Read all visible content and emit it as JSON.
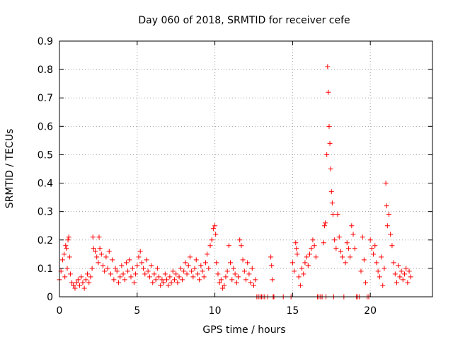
{
  "chart_data": {
    "type": "scatter",
    "title": "Day 060 of 2018, SRMTID for receiver cefe",
    "xlabel": "GPS time / hours",
    "ylabel": "SRMTID / TECUs",
    "xlim": [
      0,
      24
    ],
    "ylim": [
      0,
      0.9
    ],
    "xticks": [
      0,
      5,
      10,
      15,
      20
    ],
    "yticks": [
      0,
      0.1,
      0.2,
      0.3,
      0.4,
      0.5,
      0.6,
      0.7,
      0.8,
      0.9
    ],
    "xtick_labels": [
      "0",
      "5",
      "10",
      "15",
      "20"
    ],
    "ytick_labels": [
      "0",
      "0.1",
      "0.2",
      "0.3",
      "0.4",
      "0.5",
      "0.6",
      "0.7",
      "0.8",
      "0.9"
    ],
    "grid": true,
    "marker": "+",
    "series": [
      {
        "name": "SRMTID",
        "color": "#ff0000",
        "points": [
          [
            0.0,
            0.06
          ],
          [
            0.1,
            0.09
          ],
          [
            0.2,
            0.13
          ],
          [
            0.3,
            0.15
          ],
          [
            0.35,
            0.07
          ],
          [
            0.4,
            0.18
          ],
          [
            0.45,
            0.17
          ],
          [
            0.5,
            0.1
          ],
          [
            0.55,
            0.2
          ],
          [
            0.6,
            0.21
          ],
          [
            0.65,
            0.14
          ],
          [
            0.7,
            0.08
          ],
          [
            0.8,
            0.05
          ],
          [
            0.9,
            0.04
          ],
          [
            1.0,
            0.03
          ],
          [
            1.1,
            0.05
          ],
          [
            1.2,
            0.06
          ],
          [
            1.3,
            0.04
          ],
          [
            1.4,
            0.07
          ],
          [
            1.5,
            0.05
          ],
          [
            1.6,
            0.03
          ],
          [
            1.7,
            0.06
          ],
          [
            1.8,
            0.08
          ],
          [
            1.9,
            0.05
          ],
          [
            2.0,
            0.07
          ],
          [
            2.1,
            0.1
          ],
          [
            2.15,
            0.21
          ],
          [
            2.2,
            0.17
          ],
          [
            2.3,
            0.16
          ],
          [
            2.4,
            0.14
          ],
          [
            2.5,
            0.12
          ],
          [
            2.55,
            0.21
          ],
          [
            2.6,
            0.17
          ],
          [
            2.7,
            0.15
          ],
          [
            2.8,
            0.11
          ],
          [
            2.9,
            0.09
          ],
          [
            3.0,
            0.14
          ],
          [
            3.1,
            0.1
          ],
          [
            3.2,
            0.16
          ],
          [
            3.3,
            0.08
          ],
          [
            3.4,
            0.13
          ],
          [
            3.5,
            0.06
          ],
          [
            3.6,
            0.1
          ],
          [
            3.7,
            0.09
          ],
          [
            3.8,
            0.05
          ],
          [
            3.9,
            0.07
          ],
          [
            4.0,
            0.11
          ],
          [
            4.1,
            0.08
          ],
          [
            4.2,
            0.06
          ],
          [
            4.3,
            0.12
          ],
          [
            4.4,
            0.09
          ],
          [
            4.5,
            0.13
          ],
          [
            4.6,
            0.07
          ],
          [
            4.7,
            0.1
          ],
          [
            4.8,
            0.05
          ],
          [
            4.9,
            0.08
          ],
          [
            5.0,
            0.11
          ],
          [
            5.1,
            0.14
          ],
          [
            5.2,
            0.16
          ],
          [
            5.3,
            0.12
          ],
          [
            5.4,
            0.1
          ],
          [
            5.5,
            0.08
          ],
          [
            5.6,
            0.13
          ],
          [
            5.7,
            0.09
          ],
          [
            5.8,
            0.07
          ],
          [
            5.9,
            0.11
          ],
          [
            6.0,
            0.05
          ],
          [
            6.1,
            0.08
          ],
          [
            6.2,
            0.06
          ],
          [
            6.3,
            0.1
          ],
          [
            6.4,
            0.07
          ],
          [
            6.5,
            0.04
          ],
          [
            6.6,
            0.06
          ],
          [
            6.7,
            0.05
          ],
          [
            6.8,
            0.08
          ],
          [
            6.9,
            0.06
          ],
          [
            7.0,
            0.04
          ],
          [
            7.1,
            0.07
          ],
          [
            7.2,
            0.05
          ],
          [
            7.3,
            0.09
          ],
          [
            7.4,
            0.06
          ],
          [
            7.5,
            0.08
          ],
          [
            7.6,
            0.05
          ],
          [
            7.7,
            0.07
          ],
          [
            7.8,
            0.1
          ],
          [
            7.9,
            0.06
          ],
          [
            8.0,
            0.09
          ],
          [
            8.1,
            0.12
          ],
          [
            8.2,
            0.08
          ],
          [
            8.3,
            0.11
          ],
          [
            8.4,
            0.14
          ],
          [
            8.5,
            0.09
          ],
          [
            8.6,
            0.07
          ],
          [
            8.7,
            0.1
          ],
          [
            8.8,
            0.13
          ],
          [
            8.9,
            0.08
          ],
          [
            9.0,
            0.06
          ],
          [
            9.1,
            0.11
          ],
          [
            9.2,
            0.09
          ],
          [
            9.3,
            0.07
          ],
          [
            9.4,
            0.12
          ],
          [
            9.5,
            0.15
          ],
          [
            9.6,
            0.1
          ],
          [
            9.7,
            0.18
          ],
          [
            9.8,
            0.2
          ],
          [
            9.9,
            0.24
          ],
          [
            10.0,
            0.25
          ],
          [
            10.05,
            0.22
          ],
          [
            10.1,
            0.12
          ],
          [
            10.2,
            0.08
          ],
          [
            10.3,
            0.05
          ],
          [
            10.4,
            0.06
          ],
          [
            10.5,
            0.03
          ],
          [
            10.6,
            0.04
          ],
          [
            10.7,
            0.07
          ],
          [
            10.8,
            0.09
          ],
          [
            10.9,
            0.18
          ],
          [
            11.0,
            0.12
          ],
          [
            11.1,
            0.06
          ],
          [
            11.2,
            0.1
          ],
          [
            11.3,
            0.08
          ],
          [
            11.4,
            0.05
          ],
          [
            11.5,
            0.07
          ],
          [
            11.6,
            0.2
          ],
          [
            11.7,
            0.18
          ],
          [
            11.8,
            0.13
          ],
          [
            11.9,
            0.09
          ],
          [
            12.0,
            0.06
          ],
          [
            12.1,
            0.12
          ],
          [
            12.2,
            0.08
          ],
          [
            12.3,
            0.05
          ],
          [
            12.4,
            0.1
          ],
          [
            12.5,
            0.04
          ],
          [
            12.6,
            0.06
          ],
          [
            12.7,
            0.0
          ],
          [
            12.8,
            0.0
          ],
          [
            12.9,
            0.0
          ],
          [
            13.0,
            0.0
          ],
          [
            13.1,
            0.0
          ],
          [
            13.2,
            0.0
          ],
          [
            13.4,
            0.0
          ],
          [
            13.6,
            0.14
          ],
          [
            13.65,
            0.11
          ],
          [
            13.7,
            0.06
          ],
          [
            13.75,
            0.0
          ],
          [
            13.8,
            0.0
          ],
          [
            14.4,
            0.0
          ],
          [
            14.9,
            0.0
          ],
          [
            15.0,
            0.12
          ],
          [
            15.1,
            0.09
          ],
          [
            15.2,
            0.19
          ],
          [
            15.25,
            0.17
          ],
          [
            15.3,
            0.15
          ],
          [
            15.4,
            0.07
          ],
          [
            15.5,
            0.04
          ],
          [
            15.6,
            0.1
          ],
          [
            15.7,
            0.08
          ],
          [
            15.8,
            0.12
          ],
          [
            15.9,
            0.14
          ],
          [
            16.0,
            0.11
          ],
          [
            16.1,
            0.15
          ],
          [
            16.2,
            0.17
          ],
          [
            16.3,
            0.2
          ],
          [
            16.4,
            0.18
          ],
          [
            16.5,
            0.14
          ],
          [
            16.6,
            0.0
          ],
          [
            16.7,
            0.0
          ],
          [
            16.8,
            0.0
          ],
          [
            16.9,
            0.0
          ],
          [
            17.0,
            0.19
          ],
          [
            17.05,
            0.25
          ],
          [
            17.1,
            0.26
          ],
          [
            17.15,
            0.0
          ],
          [
            17.2,
            0.5
          ],
          [
            17.25,
            0.81
          ],
          [
            17.3,
            0.72
          ],
          [
            17.35,
            0.6
          ],
          [
            17.4,
            0.54
          ],
          [
            17.45,
            0.45
          ],
          [
            17.5,
            0.37
          ],
          [
            17.55,
            0.33
          ],
          [
            17.6,
            0.29
          ],
          [
            17.65,
            0.0
          ],
          [
            17.7,
            0.2
          ],
          [
            17.8,
            0.17
          ],
          [
            17.9,
            0.29
          ],
          [
            18.0,
            0.21
          ],
          [
            18.1,
            0.16
          ],
          [
            18.2,
            0.14
          ],
          [
            18.3,
            0.0
          ],
          [
            18.4,
            0.12
          ],
          [
            18.5,
            0.19
          ],
          [
            18.6,
            0.17
          ],
          [
            18.7,
            0.14
          ],
          [
            18.8,
            0.25
          ],
          [
            18.9,
            0.22
          ],
          [
            19.0,
            0.17
          ],
          [
            19.1,
            0.0
          ],
          [
            19.2,
            0.0
          ],
          [
            19.3,
            0.0
          ],
          [
            19.4,
            0.09
          ],
          [
            19.5,
            0.21
          ],
          [
            19.6,
            0.13
          ],
          [
            19.7,
            0.05
          ],
          [
            19.8,
            0.0
          ],
          [
            19.9,
            0.0
          ],
          [
            20.0,
            0.2
          ],
          [
            20.1,
            0.17
          ],
          [
            20.2,
            0.15
          ],
          [
            20.3,
            0.18
          ],
          [
            20.4,
            0.12
          ],
          [
            20.5,
            0.09
          ],
          [
            20.6,
            0.07
          ],
          [
            20.7,
            0.14
          ],
          [
            20.8,
            0.04
          ],
          [
            20.9,
            0.1
          ],
          [
            21.0,
            0.4
          ],
          [
            21.05,
            0.32
          ],
          [
            21.1,
            0.25
          ],
          [
            21.2,
            0.29
          ],
          [
            21.3,
            0.22
          ],
          [
            21.4,
            0.18
          ],
          [
            21.5,
            0.12
          ],
          [
            21.6,
            0.08
          ],
          [
            21.7,
            0.05
          ],
          [
            21.8,
            0.11
          ],
          [
            21.9,
            0.07
          ],
          [
            22.0,
            0.09
          ],
          [
            22.1,
            0.06
          ],
          [
            22.2,
            0.08
          ],
          [
            22.3,
            0.1
          ],
          [
            22.4,
            0.05
          ],
          [
            22.5,
            0.09
          ],
          [
            22.6,
            0.07
          ]
        ]
      }
    ]
  }
}
